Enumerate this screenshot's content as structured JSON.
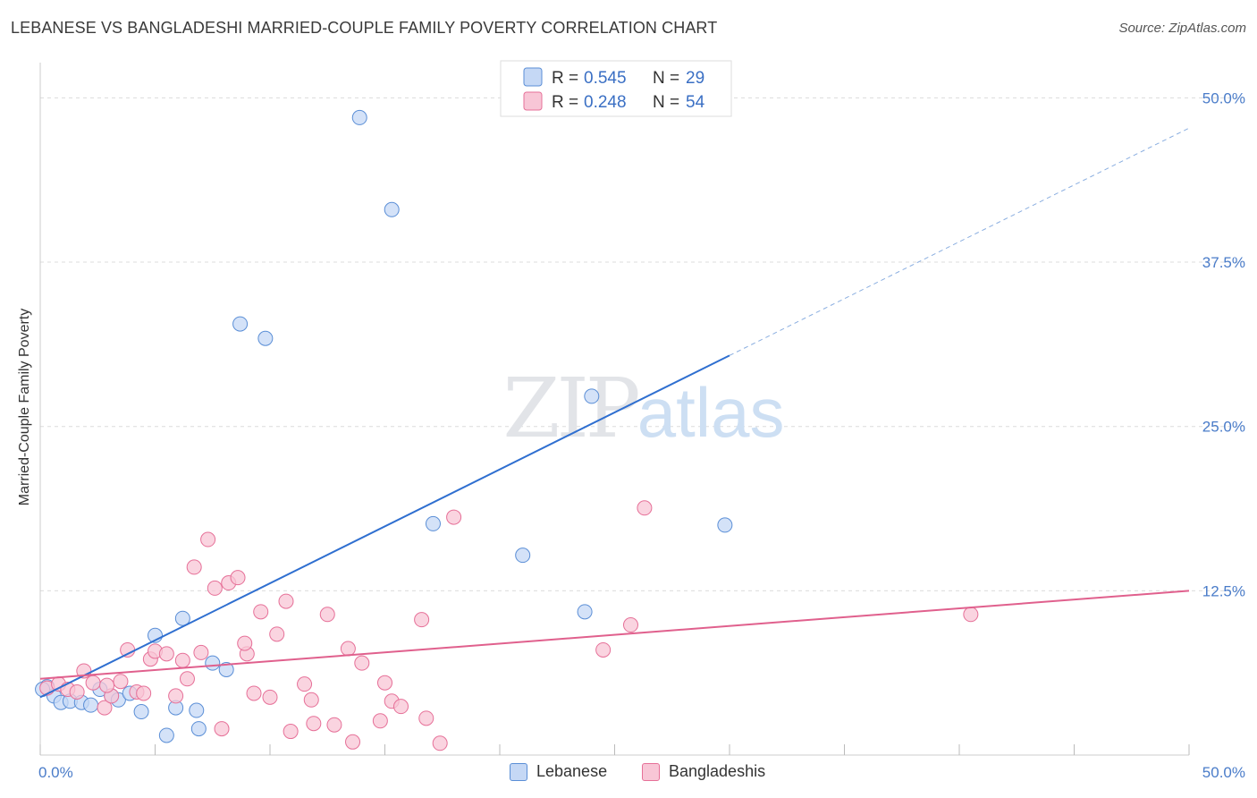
{
  "chart_data": {
    "type": "scatter",
    "title": "LEBANESE VS BANGLADESHI MARRIED-COUPLE FAMILY POVERTY CORRELATION CHART",
    "source": "Source: ZipAtlas.com",
    "xlabel": "",
    "ylabel": "Married-Couple Family Poverty",
    "xlim": [
      0,
      50
    ],
    "ylim": [
      0,
      52
    ],
    "x_tick_labels": [
      "0.0%",
      "50.0%"
    ],
    "y_ticks": [
      12.5,
      25.0,
      37.5,
      50.0
    ],
    "y_tick_labels": [
      "12.5%",
      "25.0%",
      "37.5%",
      "50.0%"
    ],
    "grid": true,
    "watermark": "ZIPatlas",
    "series": [
      {
        "name": "Lebanese",
        "color": "#5a8ed6",
        "fill": "#c5d8f5",
        "r_label": "R =",
        "r_value": "0.545",
        "n_label": "N =",
        "n_value": "29",
        "trend": {
          "x0": 0,
          "y0": 4.4,
          "x1": 30,
          "y1": 30.4,
          "dash_to_x": 50,
          "dash_to_y": 47.7
        },
        "points": [
          [
            0.3,
            5.2
          ],
          [
            0.6,
            4.5
          ],
          [
            0.9,
            4.0
          ],
          [
            1.3,
            4.1
          ],
          [
            1.8,
            4.0
          ],
          [
            2.2,
            3.8
          ],
          [
            2.6,
            5.0
          ],
          [
            3.1,
            4.5
          ],
          [
            3.4,
            4.2
          ],
          [
            3.9,
            4.7
          ],
          [
            4.4,
            3.3
          ],
          [
            5.0,
            9.1
          ],
          [
            5.5,
            1.5
          ],
          [
            5.9,
            3.6
          ],
          [
            6.2,
            10.4
          ],
          [
            6.8,
            3.4
          ],
          [
            6.9,
            2.0
          ],
          [
            7.5,
            7.0
          ],
          [
            8.1,
            6.5
          ],
          [
            8.7,
            32.8
          ],
          [
            9.8,
            31.7
          ],
          [
            13.9,
            48.5
          ],
          [
            15.3,
            41.5
          ],
          [
            17.1,
            17.6
          ],
          [
            21.0,
            15.2
          ],
          [
            23.7,
            10.9
          ],
          [
            24.0,
            27.3
          ],
          [
            29.8,
            17.5
          ],
          [
            0.1,
            5.0
          ]
        ]
      },
      {
        "name": "Bangladeshis",
        "color": "#e67098",
        "fill": "#f8c6d6",
        "r_label": "R =",
        "r_value": "0.248",
        "n_label": "N =",
        "n_value": "54",
        "trend": {
          "x0": 0,
          "y0": 5.8,
          "x1": 50,
          "y1": 12.5
        },
        "points": [
          [
            0.3,
            5.1
          ],
          [
            0.8,
            5.4
          ],
          [
            1.2,
            5.0
          ],
          [
            1.6,
            4.8
          ],
          [
            1.9,
            6.4
          ],
          [
            2.3,
            5.5
          ],
          [
            2.8,
            3.6
          ],
          [
            3.1,
            4.5
          ],
          [
            3.5,
            5.6
          ],
          [
            3.8,
            8.0
          ],
          [
            4.2,
            4.8
          ],
          [
            4.5,
            4.7
          ],
          [
            4.8,
            7.3
          ],
          [
            5.0,
            7.9
          ],
          [
            5.5,
            7.7
          ],
          [
            5.9,
            4.5
          ],
          [
            6.2,
            7.2
          ],
          [
            6.4,
            5.8
          ],
          [
            6.7,
            14.3
          ],
          [
            7.0,
            7.8
          ],
          [
            7.3,
            16.4
          ],
          [
            7.6,
            12.7
          ],
          [
            7.9,
            2.0
          ],
          [
            8.2,
            13.1
          ],
          [
            8.6,
            13.5
          ],
          [
            9.0,
            7.7
          ],
          [
            9.3,
            4.7
          ],
          [
            9.6,
            10.9
          ],
          [
            10.0,
            4.4
          ],
          [
            10.3,
            9.2
          ],
          [
            10.7,
            11.7
          ],
          [
            10.9,
            1.8
          ],
          [
            11.5,
            5.4
          ],
          [
            11.8,
            4.2
          ],
          [
            11.9,
            2.4
          ],
          [
            12.5,
            10.7
          ],
          [
            12.8,
            2.3
          ],
          [
            13.4,
            8.1
          ],
          [
            13.6,
            1.0
          ],
          [
            14.0,
            7.0
          ],
          [
            14.8,
            2.6
          ],
          [
            15.0,
            5.5
          ],
          [
            15.3,
            4.1
          ],
          [
            15.7,
            3.7
          ],
          [
            16.6,
            10.3
          ],
          [
            16.8,
            2.8
          ],
          [
            17.4,
            0.9
          ],
          [
            18.0,
            18.1
          ],
          [
            24.5,
            8.0
          ],
          [
            25.7,
            9.9
          ],
          [
            26.3,
            18.8
          ],
          [
            40.5,
            10.7
          ],
          [
            8.9,
            8.5
          ],
          [
            2.9,
            5.3
          ]
        ]
      }
    ]
  }
}
